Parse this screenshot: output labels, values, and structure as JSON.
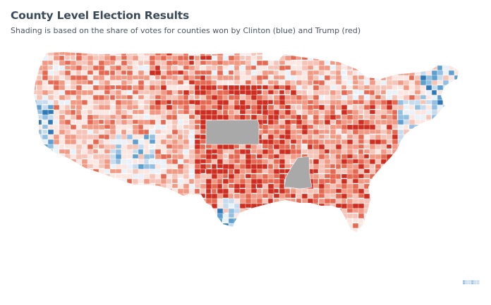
{
  "header": {
    "title": "County Level Election Results",
    "subtitle": "Shading is based on the share of votes for counties won by Clinton (blue) and Trump (red)"
  },
  "map": {
    "type": "choropleth",
    "region": "United States counties",
    "encoding": "share of votes for the county winner",
    "colors": {
      "clinton": [
        "#eaf2f9",
        "#c6dcee",
        "#93bfe0",
        "#5d9fcf",
        "#2f79b6"
      ],
      "trump": [
        "#fbe6e1",
        "#f6c3b7",
        "#f09a86",
        "#e46953",
        "#cc2f22"
      ],
      "no_data": "#a9a9a9",
      "county_border": "#ffffff"
    },
    "no_data_areas": [
      "Kansas",
      "Mississippi"
    ]
  }
}
